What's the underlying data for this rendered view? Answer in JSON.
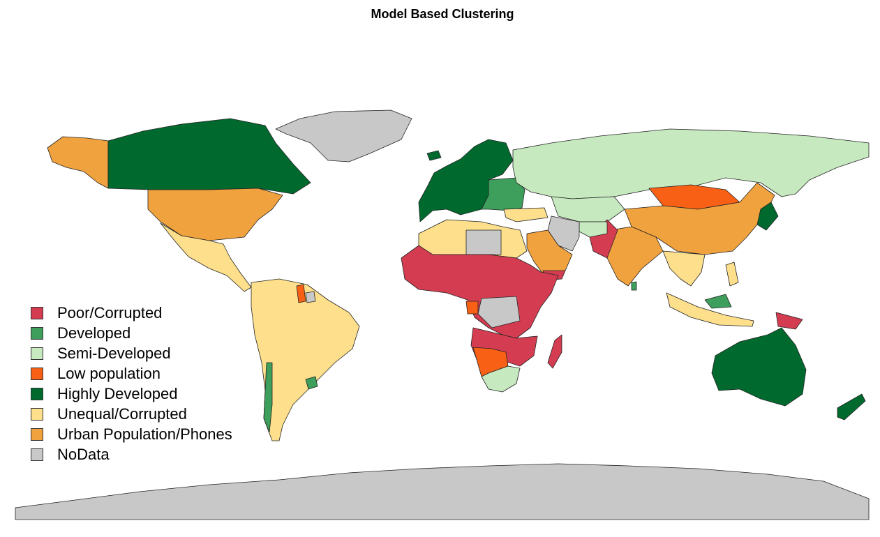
{
  "title": "Model Based Clustering",
  "legend": {
    "items": [
      {
        "label": "Poor/Corrupted",
        "color": "#d43d51"
      },
      {
        "label": "Developed",
        "color": "#3e9e5c"
      },
      {
        "label": "Semi-Developed",
        "color": "#c7e9c0"
      },
      {
        "label": "Low population",
        "color": "#f76015"
      },
      {
        "label": "Highly Developed",
        "color": "#006a2e"
      },
      {
        "label": "Unequal/Corrupted",
        "color": "#fddf8c"
      },
      {
        "label": "Urban Population/Phones",
        "color": "#f0a23e"
      },
      {
        "label": "NoData",
        "color": "#c8c8c8"
      }
    ]
  }
}
